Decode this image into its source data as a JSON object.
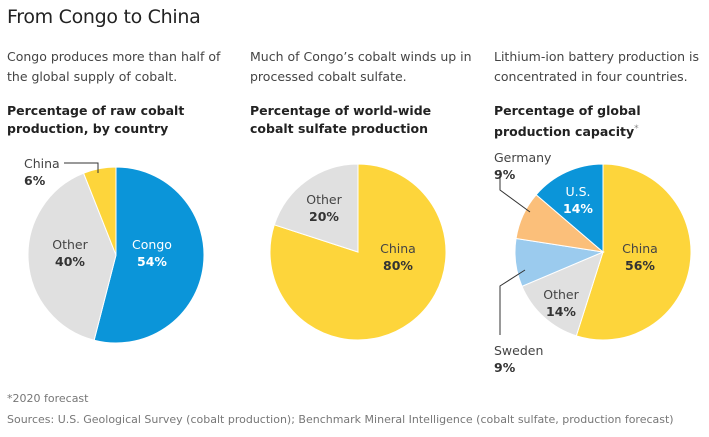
{
  "title": "From Congo to China",
  "panels": [
    {
      "description": "Congo produces more than half of the global supply of cobalt.",
      "subtitle": "Percentage of raw cobalt production, by country",
      "subtitle_mark": ""
    },
    {
      "description": "Much of Congo’s cobalt winds up in processed cobalt sulfate.",
      "subtitle": "Percentage of world-wide cobalt sulfate production",
      "subtitle_mark": ""
    },
    {
      "description": "Lithium-ion battery production is concentrated in four countries.",
      "subtitle": "Percentage of global production capacity",
      "subtitle_mark": "*"
    }
  ],
  "chart_data": [
    {
      "type": "pie",
      "title": "Percentage of raw cobalt production, by country",
      "slices": [
        {
          "label": "Congo",
          "value": 54,
          "display": "54%",
          "color": "#0b95d9"
        },
        {
          "label": "Other",
          "value": 40,
          "display": "40%",
          "color": "#e0e0e0"
        },
        {
          "label": "China",
          "value": 6,
          "display": "6%",
          "color": "#fdd53b"
        }
      ]
    },
    {
      "type": "pie",
      "title": "Percentage of world-wide cobalt sulfate production",
      "slices": [
        {
          "label": "China",
          "value": 80,
          "display": "80%",
          "color": "#fdd53b"
        },
        {
          "label": "Other",
          "value": 20,
          "display": "20%",
          "color": "#e0e0e0"
        }
      ]
    },
    {
      "type": "pie",
      "title": "Percentage of global production capacity*",
      "slices": [
        {
          "label": "China",
          "value": 56,
          "display": "56%",
          "color": "#fdd53b"
        },
        {
          "label": "Other",
          "value": 14,
          "display": "14%",
          "color": "#e0e0e0"
        },
        {
          "label": "Sweden",
          "value": 9,
          "display": "9%",
          "color": "#9bcbee"
        },
        {
          "label": "Germany",
          "value": 9,
          "display": "9%",
          "color": "#fbbf7a"
        },
        {
          "label": "U.S.",
          "value": 14,
          "display": "14%",
          "color": "#0b95d9"
        }
      ]
    }
  ],
  "footnote": "*2020 forecast",
  "sources": "Sources: U.S. Geological Survey (cobalt production); Benchmark Mineral Intelligence (cobalt sulfate, production forecast)"
}
